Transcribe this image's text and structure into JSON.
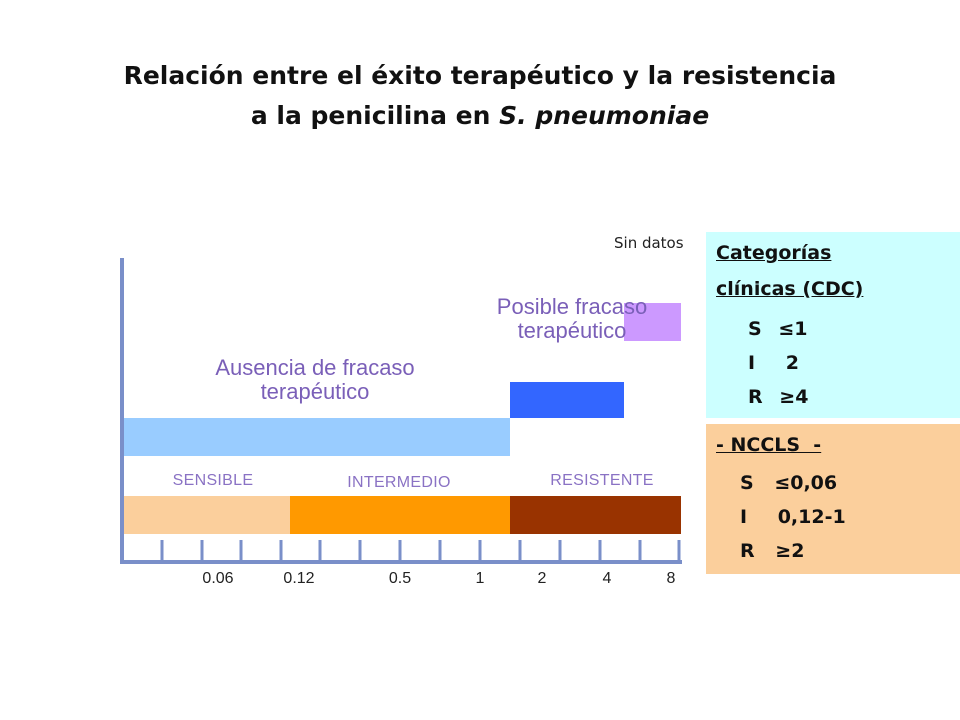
{
  "title": {
    "line1": "Relación entre el éxito terapéutico y la resistencia",
    "line2_prefix": "a la penicilina en ",
    "line2_italic": "S. pneumoniae"
  },
  "labels": {
    "sin_datos": "Sin datos",
    "posible_fracaso": "Posible fracaso terapéutico",
    "ausencia_fracaso": "Ausencia de fracaso terapéutico",
    "sensible": "SENSIBLE",
    "intermedio": "INTERMEDIO",
    "resistente": "RESISTENTE"
  },
  "axis_ticks": [
    "0.06",
    "0.12",
    "0.5",
    "1",
    "2",
    "4",
    "8"
  ],
  "cdc_box": {
    "heading1": "Categorías",
    "heading2": "clínicas (CDC)",
    "rows": [
      {
        "cat": "S",
        "sym": "≤",
        "val": "1"
      },
      {
        "cat": "I",
        "sym": "",
        "val": "2"
      },
      {
        "cat": "R",
        "sym": "≥",
        "val": "4"
      }
    ]
  },
  "nccls_box": {
    "heading": "- NCCLS  -",
    "rows": [
      {
        "cat": "S",
        "sym": "≤",
        "val": "0,06"
      },
      {
        "cat": "I",
        "sym": "",
        "val": "0,12-1"
      },
      {
        "cat": "R",
        "sym": "≥",
        "val": "2"
      }
    ]
  },
  "colors": {
    "axis": "#7a8fc9",
    "ausencia_bar": "#99ccff",
    "posible_bar": "#3366ff",
    "sin_datos_bar": "#cc99ff",
    "sensible_bar": "#fbcf9c",
    "intermedio_bar": "#ff9900",
    "resistente_bar": "#993300",
    "cdc_bg": "#ccffff",
    "nccls_bg": "#fbcf9c"
  }
}
